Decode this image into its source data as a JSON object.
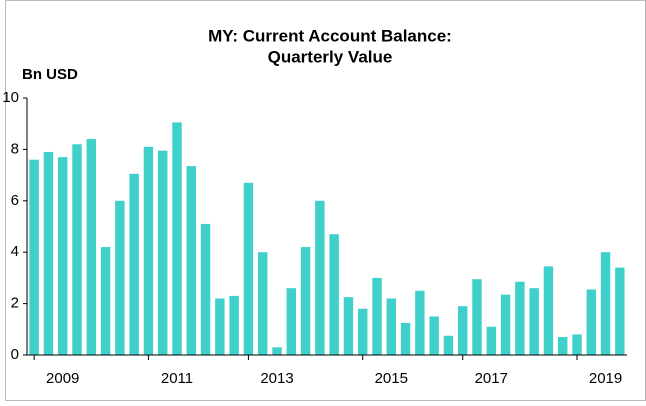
{
  "chart_data": {
    "type": "bar",
    "title": "MY: Current Account Balance:",
    "subtitle": "Quarterly Value",
    "y_label": "Bn USD",
    "categories": [
      null,
      null,
      "2009",
      null,
      null,
      null,
      null,
      null,
      null,
      null,
      "2011",
      null,
      null,
      null,
      null,
      null,
      null,
      "2013",
      null,
      null,
      null,
      null,
      null,
      null,
      null,
      "2015",
      null,
      null,
      null,
      null,
      null,
      null,
      "2017",
      null,
      null,
      null,
      null,
      null,
      null,
      null,
      "2019",
      null
    ],
    "values": [
      7.6,
      7.9,
      7.7,
      8.2,
      8.4,
      4.2,
      6.0,
      7.05,
      8.1,
      7.95,
      9.05,
      7.35,
      5.1,
      2.2,
      2.3,
      6.7,
      4.0,
      0.3,
      2.6,
      4.2,
      6.0,
      4.7,
      2.25,
      1.8,
      3.0,
      2.2,
      1.25,
      2.5,
      1.5,
      0.75,
      1.9,
      2.95,
      1.1,
      2.35,
      2.85,
      2.6,
      3.45,
      0.7,
      0.8,
      2.55,
      4.0,
      3.4
    ],
    "color": "#40d0cc",
    "ylim": [
      0,
      10
    ],
    "yticks": [
      0,
      2,
      4,
      6,
      8,
      10
    ],
    "grid": false
  }
}
